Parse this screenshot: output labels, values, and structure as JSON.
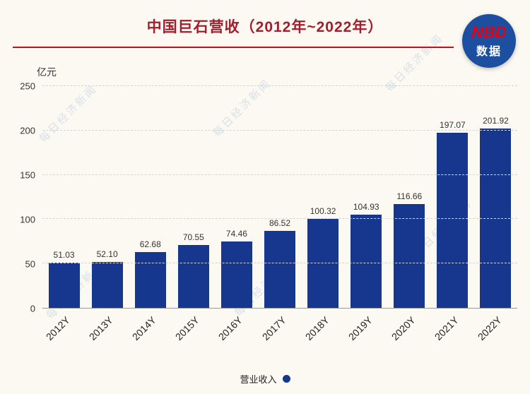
{
  "logo": {
    "line1": "NBD",
    "line2": "数据"
  },
  "watermark": "每日经济新闻",
  "chart_data": {
    "type": "bar",
    "title": "中国巨石营收（2012年~2022年）",
    "unit": "亿元",
    "categories": [
      "2012Y",
      "2013Y",
      "2014Y",
      "2015Y",
      "2016Y",
      "2017Y",
      "2018Y",
      "2019Y",
      "2020Y",
      "2021Y",
      "2022Y"
    ],
    "values": [
      51.03,
      52.1,
      62.68,
      70.55,
      74.46,
      86.52,
      100.32,
      104.93,
      116.66,
      197.07,
      201.92
    ],
    "ylim": [
      0,
      250
    ],
    "yticks": [
      0,
      50,
      100,
      150,
      200,
      250
    ],
    "grid": "horizontal-dashed",
    "legend": "营业收入",
    "legend_position": "bottom",
    "bar_color": "#17368d",
    "title_color": "#a11e2e",
    "accent_red": "#e60012",
    "logo_bg": "#1d4fa1"
  }
}
